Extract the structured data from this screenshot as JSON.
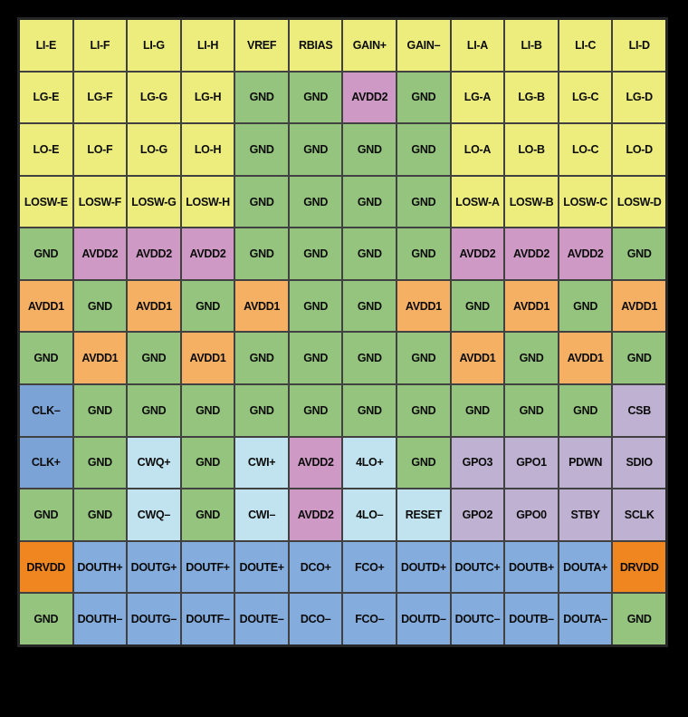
{
  "page": {
    "background_color": "#000000",
    "description": "IC package ball-map pin configuration grid, 12 columns by 12 rows"
  },
  "diagram": {
    "columns": 12,
    "grid_line_color": "#414141",
    "outer_border_color": "#262626",
    "text_color": "#0b0b0b",
    "cell_type_colors": {
      "io": "#ECED7D",
      "gnd": "#95C47E",
      "avdd2": "#CE9AC5",
      "avdd1": "#F6B064",
      "drvdd": "#F0861F",
      "clk": "#7CA3D6",
      "cw": "#C0E3EF",
      "spi": "#BEB1D1",
      "dout": "#84ACDD"
    },
    "rows": [
      [
        [
          "LI-E",
          "io"
        ],
        [
          "LI-F",
          "io"
        ],
        [
          "LI-G",
          "io"
        ],
        [
          "LI-H",
          "io"
        ],
        [
          "VREF",
          "io"
        ],
        [
          "RBIAS",
          "io"
        ],
        [
          "GAIN+",
          "io"
        ],
        [
          "GAIN–",
          "io"
        ],
        [
          "LI-A",
          "io"
        ],
        [
          "LI-B",
          "io"
        ],
        [
          "LI-C",
          "io"
        ],
        [
          "LI-D",
          "io"
        ]
      ],
      [
        [
          "LG-E",
          "io"
        ],
        [
          "LG-F",
          "io"
        ],
        [
          "LG-G",
          "io"
        ],
        [
          "LG-H",
          "io"
        ],
        [
          "GND",
          "gnd"
        ],
        [
          "GND",
          "gnd"
        ],
        [
          "AVDD2",
          "avdd2"
        ],
        [
          "GND",
          "gnd"
        ],
        [
          "LG-A",
          "io"
        ],
        [
          "LG-B",
          "io"
        ],
        [
          "LG-C",
          "io"
        ],
        [
          "LG-D",
          "io"
        ]
      ],
      [
        [
          "LO-E",
          "io"
        ],
        [
          "LO-F",
          "io"
        ],
        [
          "LO-G",
          "io"
        ],
        [
          "LO-H",
          "io"
        ],
        [
          "GND",
          "gnd"
        ],
        [
          "GND",
          "gnd"
        ],
        [
          "GND",
          "gnd"
        ],
        [
          "GND",
          "gnd"
        ],
        [
          "LO-A",
          "io"
        ],
        [
          "LO-B",
          "io"
        ],
        [
          "LO-C",
          "io"
        ],
        [
          "LO-D",
          "io"
        ]
      ],
      [
        [
          "LOSW-E",
          "io"
        ],
        [
          "LOSW-F",
          "io"
        ],
        [
          "LOSW-G",
          "io"
        ],
        [
          "LOSW-H",
          "io"
        ],
        [
          "GND",
          "gnd"
        ],
        [
          "GND",
          "gnd"
        ],
        [
          "GND",
          "gnd"
        ],
        [
          "GND",
          "gnd"
        ],
        [
          "LOSW-A",
          "io"
        ],
        [
          "LOSW-B",
          "io"
        ],
        [
          "LOSW-C",
          "io"
        ],
        [
          "LOSW-D",
          "io"
        ]
      ],
      [
        [
          "GND",
          "gnd"
        ],
        [
          "AVDD2",
          "avdd2"
        ],
        [
          "AVDD2",
          "avdd2"
        ],
        [
          "AVDD2",
          "avdd2"
        ],
        [
          "GND",
          "gnd"
        ],
        [
          "GND",
          "gnd"
        ],
        [
          "GND",
          "gnd"
        ],
        [
          "GND",
          "gnd"
        ],
        [
          "AVDD2",
          "avdd2"
        ],
        [
          "AVDD2",
          "avdd2"
        ],
        [
          "AVDD2",
          "avdd2"
        ],
        [
          "GND",
          "gnd"
        ]
      ],
      [
        [
          "AVDD1",
          "avdd1"
        ],
        [
          "GND",
          "gnd"
        ],
        [
          "AVDD1",
          "avdd1"
        ],
        [
          "GND",
          "gnd"
        ],
        [
          "AVDD1",
          "avdd1"
        ],
        [
          "GND",
          "gnd"
        ],
        [
          "GND",
          "gnd"
        ],
        [
          "AVDD1",
          "avdd1"
        ],
        [
          "GND",
          "gnd"
        ],
        [
          "AVDD1",
          "avdd1"
        ],
        [
          "GND",
          "gnd"
        ],
        [
          "AVDD1",
          "avdd1"
        ]
      ],
      [
        [
          "GND",
          "gnd"
        ],
        [
          "AVDD1",
          "avdd1"
        ],
        [
          "GND",
          "gnd"
        ],
        [
          "AVDD1",
          "avdd1"
        ],
        [
          "GND",
          "gnd"
        ],
        [
          "GND",
          "gnd"
        ],
        [
          "GND",
          "gnd"
        ],
        [
          "GND",
          "gnd"
        ],
        [
          "AVDD1",
          "avdd1"
        ],
        [
          "GND",
          "gnd"
        ],
        [
          "AVDD1",
          "avdd1"
        ],
        [
          "GND",
          "gnd"
        ]
      ],
      [
        [
          "CLK–",
          "clk"
        ],
        [
          "GND",
          "gnd"
        ],
        [
          "GND",
          "gnd"
        ],
        [
          "GND",
          "gnd"
        ],
        [
          "GND",
          "gnd"
        ],
        [
          "GND",
          "gnd"
        ],
        [
          "GND",
          "gnd"
        ],
        [
          "GND",
          "gnd"
        ],
        [
          "GND",
          "gnd"
        ],
        [
          "GND",
          "gnd"
        ],
        [
          "GND",
          "gnd"
        ],
        [
          "CSB",
          "spi"
        ]
      ],
      [
        [
          "CLK+",
          "clk"
        ],
        [
          "GND",
          "gnd"
        ],
        [
          "CWQ+",
          "cw"
        ],
        [
          "GND",
          "gnd"
        ],
        [
          "CWI+",
          "cw"
        ],
        [
          "AVDD2",
          "avdd2"
        ],
        [
          "4LO+",
          "cw"
        ],
        [
          "GND",
          "gnd"
        ],
        [
          "GPO3",
          "spi"
        ],
        [
          "GPO1",
          "spi"
        ],
        [
          "PDWN",
          "spi"
        ],
        [
          "SDIO",
          "spi"
        ]
      ],
      [
        [
          "GND",
          "gnd"
        ],
        [
          "GND",
          "gnd"
        ],
        [
          "CWQ–",
          "cw"
        ],
        [
          "GND",
          "gnd"
        ],
        [
          "CWI–",
          "cw"
        ],
        [
          "AVDD2",
          "avdd2"
        ],
        [
          "4LO–",
          "cw"
        ],
        [
          "RESET",
          "cw"
        ],
        [
          "GPO2",
          "spi"
        ],
        [
          "GPO0",
          "spi"
        ],
        [
          "STBY",
          "spi"
        ],
        [
          "SCLK",
          "spi"
        ]
      ],
      [
        [
          "DRVDD",
          "drvdd"
        ],
        [
          "DOUTH+",
          "dout"
        ],
        [
          "DOUTG+",
          "dout"
        ],
        [
          "DOUTF+",
          "dout"
        ],
        [
          "DOUTE+",
          "dout"
        ],
        [
          "DCO+",
          "dout"
        ],
        [
          "FCO+",
          "dout"
        ],
        [
          "DOUTD+",
          "dout"
        ],
        [
          "DOUTC+",
          "dout"
        ],
        [
          "DOUTB+",
          "dout"
        ],
        [
          "DOUTA+",
          "dout"
        ],
        [
          "DRVDD",
          "drvdd"
        ]
      ],
      [
        [
          "GND",
          "gnd"
        ],
        [
          "DOUTH–",
          "dout"
        ],
        [
          "DOUTG–",
          "dout"
        ],
        [
          "DOUTF–",
          "dout"
        ],
        [
          "DOUTE–",
          "dout"
        ],
        [
          "DCO–",
          "dout"
        ],
        [
          "FCO–",
          "dout"
        ],
        [
          "DOUTD–",
          "dout"
        ],
        [
          "DOUTC–",
          "dout"
        ],
        [
          "DOUTB–",
          "dout"
        ],
        [
          "DOUTA–",
          "dout"
        ],
        [
          "GND",
          "gnd"
        ]
      ]
    ]
  }
}
